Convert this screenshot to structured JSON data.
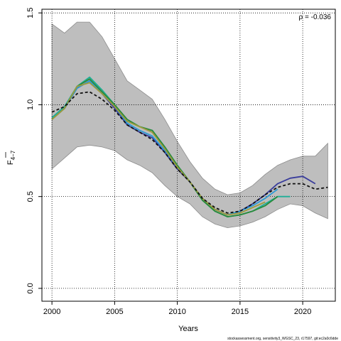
{
  "chart_data": {
    "type": "line",
    "xlabel": "Years",
    "ylabel": "F",
    "ylabel_subscript": "4−7",
    "xlim": [
      1999.2,
      2022.6
    ],
    "ylim": [
      -0.07,
      1.52
    ],
    "xticks": [
      2000,
      2005,
      2010,
      2015,
      2020
    ],
    "xtick_labels": [
      "2000",
      "2005",
      "2010",
      "2015",
      "2020"
    ],
    "yticks": [
      0.0,
      0.5,
      1.0,
      1.5
    ],
    "ytick_labels": [
      "0.0",
      "0.5",
      "1.0",
      "1.5"
    ],
    "grid": "dotted at ticks",
    "annotation": "ρ = -0.036",
    "footer": "stockassessment.org, sensitivity3_WGSC_23, r17597, git:ec2a0c6dde",
    "band": {
      "x": [
        2000,
        2001,
        2002,
        2003,
        2004,
        2005,
        2006,
        2007,
        2008,
        2009,
        2010,
        2011,
        2012,
        2013,
        2014,
        2015,
        2016,
        2017,
        2018,
        2019,
        2020,
        2021,
        2022
      ],
      "upper": [
        1.44,
        1.39,
        1.45,
        1.45,
        1.37,
        1.25,
        1.13,
        1.08,
        1.03,
        0.92,
        0.8,
        0.69,
        0.6,
        0.54,
        0.51,
        0.52,
        0.56,
        0.62,
        0.67,
        0.7,
        0.72,
        0.72,
        0.79
      ],
      "lower": [
        0.65,
        0.71,
        0.77,
        0.78,
        0.77,
        0.75,
        0.7,
        0.67,
        0.63,
        0.56,
        0.5,
        0.46,
        0.39,
        0.35,
        0.33,
        0.34,
        0.36,
        0.39,
        0.43,
        0.46,
        0.45,
        0.41,
        0.38
      ]
    },
    "series": [
      {
        "color": "#3a3d9c",
        "width": 1.8,
        "dash": "",
        "x": [
          2000,
          2001,
          2002,
          2003,
          2004,
          2005,
          2006,
          2007,
          2008,
          2009,
          2010,
          2011,
          2012,
          2013,
          2014,
          2015,
          2016,
          2017,
          2018,
          2019,
          2020,
          2021
        ],
        "y": [
          0.93,
          0.98,
          1.09,
          1.13,
          1.06,
          0.98,
          0.89,
          0.85,
          0.82,
          0.74,
          0.65,
          0.58,
          0.49,
          0.43,
          0.4,
          0.42,
          0.46,
          0.51,
          0.57,
          0.6,
          0.61,
          0.57
        ]
      },
      {
        "color": "#2b9ad6",
        "width": 1.8,
        "dash": "",
        "x": [
          2000,
          2001,
          2002,
          2003,
          2004,
          2005,
          2006,
          2007,
          2008,
          2009,
          2010,
          2011,
          2012,
          2013,
          2014,
          2015,
          2016,
          2017,
          2018
        ],
        "y": [
          0.93,
          0.98,
          1.09,
          1.13,
          1.06,
          0.99,
          0.9,
          0.86,
          0.83,
          0.75,
          0.66,
          0.58,
          0.49,
          0.43,
          0.4,
          0.42,
          0.45,
          0.49,
          0.54
        ]
      },
      {
        "color": "#1fae97",
        "width": 1.8,
        "dash": "",
        "x": [
          2000,
          2001,
          2002,
          2003,
          2004,
          2005,
          2006,
          2007,
          2008,
          2009,
          2010,
          2011,
          2012,
          2013,
          2014,
          2015,
          2016,
          2017,
          2018,
          2019
        ],
        "y": [
          0.93,
          0.99,
          1.1,
          1.15,
          1.08,
          1.0,
          0.91,
          0.88,
          0.86,
          0.77,
          0.67,
          0.58,
          0.48,
          0.42,
          0.39,
          0.4,
          0.42,
          0.46,
          0.5,
          0.5
        ]
      },
      {
        "color": "#2a8a3a",
        "width": 1.8,
        "dash": "",
        "x": [
          2000,
          2001,
          2002,
          2003,
          2004,
          2005,
          2006,
          2007,
          2008,
          2009,
          2010,
          2011,
          2012,
          2013,
          2014,
          2015,
          2016,
          2017,
          2018
        ],
        "y": [
          0.92,
          0.98,
          1.1,
          1.14,
          1.07,
          1.0,
          0.92,
          0.88,
          0.86,
          0.77,
          0.67,
          0.58,
          0.48,
          0.42,
          0.39,
          0.4,
          0.42,
          0.45,
          0.5
        ]
      },
      {
        "color": "#9e9a3c",
        "width": 1.8,
        "dash": "",
        "x": [
          2000,
          2001,
          2002,
          2003,
          2004,
          2005,
          2006,
          2007,
          2008,
          2009,
          2010,
          2011,
          2012,
          2013,
          2014,
          2015,
          2016,
          2017
        ],
        "y": [
          0.92,
          0.98,
          1.1,
          1.12,
          1.06,
          0.99,
          0.91,
          0.88,
          0.85,
          0.76,
          0.66,
          0.58,
          0.49,
          0.43,
          0.4,
          0.41,
          0.44,
          0.47
        ]
      },
      {
        "color": "#111111",
        "width": 1.8,
        "dash": "4,3",
        "x": [
          2000,
          2001,
          2002,
          2003,
          2004,
          2005,
          2006,
          2007,
          2008,
          2009,
          2010,
          2011,
          2012,
          2013,
          2014,
          2015,
          2016,
          2017,
          2018,
          2019,
          2020,
          2021,
          2022
        ],
        "y": [
          0.96,
          0.99,
          1.06,
          1.07,
          1.03,
          0.97,
          0.89,
          0.85,
          0.81,
          0.74,
          0.65,
          0.58,
          0.49,
          0.44,
          0.41,
          0.42,
          0.46,
          0.51,
          0.55,
          0.57,
          0.57,
          0.54,
          0.55
        ]
      }
    ]
  }
}
